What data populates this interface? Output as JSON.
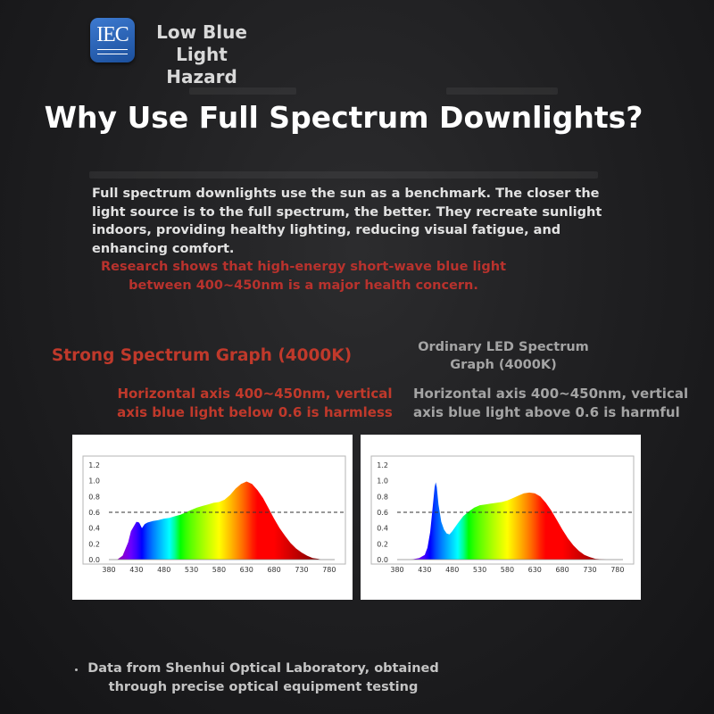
{
  "badge": {
    "logo": "IEC",
    "title": "Low Blue Light Hazard"
  },
  "headline": "Why Use Full Spectrum Downlights?",
  "intro": "Full spectrum downlights use the sun as a benchmark. The closer the light source is to the full spectrum, the better. They recreate sunlight indoors, providing healthy lighting, reducing visual fatigue, and enhancing comfort.",
  "research": "Research shows that high-energy short-wave blue light between 400~450nm is a major health concern.",
  "left": {
    "title": "Strong Spectrum Graph (4000K)",
    "description": "Horizontal axis 400~450nm, vertical axis blue light below 0.6 is harmless"
  },
  "right": {
    "title": "Ordinary LED Spectrum Graph (4000K)",
    "description": "Horizontal axis 400~450nm, vertical axis blue light above 0.6 is harmful"
  },
  "footer": "Data from Shenhui Optical Laboratory, obtained through precise optical equipment testing",
  "colors": {
    "accent_red": "#c0392b",
    "threshold_line": "#333333",
    "panel_bg": "#ffffff"
  },
  "chart_data": [
    {
      "type": "area",
      "title": "Strong Spectrum Graph (4000K)",
      "x_ticks": [
        380,
        430,
        480,
        530,
        580,
        630,
        680,
        730,
        780
      ],
      "y_ticks": [
        "0.0",
        "0.2",
        "0.4",
        "0.6",
        "0.8",
        "1.0",
        "1.2"
      ],
      "xlim": [
        380,
        790
      ],
      "ylim": [
        0,
        1.2
      ],
      "threshold": 0.6,
      "grid": false,
      "x": [
        395,
        405,
        415,
        420,
        425,
        430,
        435,
        440,
        445,
        450,
        460,
        470,
        480,
        490,
        500,
        510,
        520,
        530,
        540,
        550,
        560,
        570,
        580,
        590,
        600,
        610,
        620,
        630,
        640,
        650,
        660,
        670,
        680,
        690,
        700,
        710,
        720,
        730,
        740,
        750,
        760,
        765
      ],
      "values": [
        0.0,
        0.05,
        0.22,
        0.36,
        0.42,
        0.48,
        0.47,
        0.4,
        0.45,
        0.47,
        0.49,
        0.5,
        0.52,
        0.53,
        0.55,
        0.57,
        0.6,
        0.63,
        0.66,
        0.68,
        0.7,
        0.72,
        0.73,
        0.76,
        0.82,
        0.9,
        0.96,
        0.99,
        0.96,
        0.88,
        0.78,
        0.65,
        0.52,
        0.4,
        0.3,
        0.21,
        0.14,
        0.09,
        0.05,
        0.02,
        0.01,
        0.0
      ]
    },
    {
      "type": "area",
      "title": "Ordinary LED Spectrum Graph (4000K)",
      "x_ticks": [
        380,
        430,
        480,
        530,
        580,
        630,
        680,
        730,
        780
      ],
      "y_ticks": [
        "0.0",
        "0.2",
        "0.4",
        "0.6",
        "0.8",
        "1.0",
        "1.2"
      ],
      "xlim": [
        380,
        790
      ],
      "ylim": [
        0,
        1.2
      ],
      "threshold": 0.6,
      "grid": false,
      "x": [
        405,
        420,
        430,
        435,
        440,
        445,
        448,
        450,
        452,
        455,
        460,
        465,
        470,
        475,
        480,
        490,
        500,
        510,
        520,
        530,
        540,
        550,
        560,
        570,
        580,
        590,
        600,
        610,
        620,
        630,
        640,
        650,
        660,
        670,
        680,
        690,
        700,
        710,
        720,
        730,
        740,
        750,
        760
      ],
      "values": [
        0.0,
        0.02,
        0.06,
        0.15,
        0.35,
        0.7,
        0.92,
        0.98,
        0.92,
        0.7,
        0.48,
        0.38,
        0.33,
        0.32,
        0.36,
        0.46,
        0.55,
        0.61,
        0.66,
        0.69,
        0.7,
        0.71,
        0.72,
        0.73,
        0.75,
        0.78,
        0.81,
        0.84,
        0.85,
        0.84,
        0.8,
        0.72,
        0.62,
        0.5,
        0.38,
        0.27,
        0.18,
        0.11,
        0.06,
        0.03,
        0.01,
        0.005,
        0.0
      ]
    }
  ]
}
